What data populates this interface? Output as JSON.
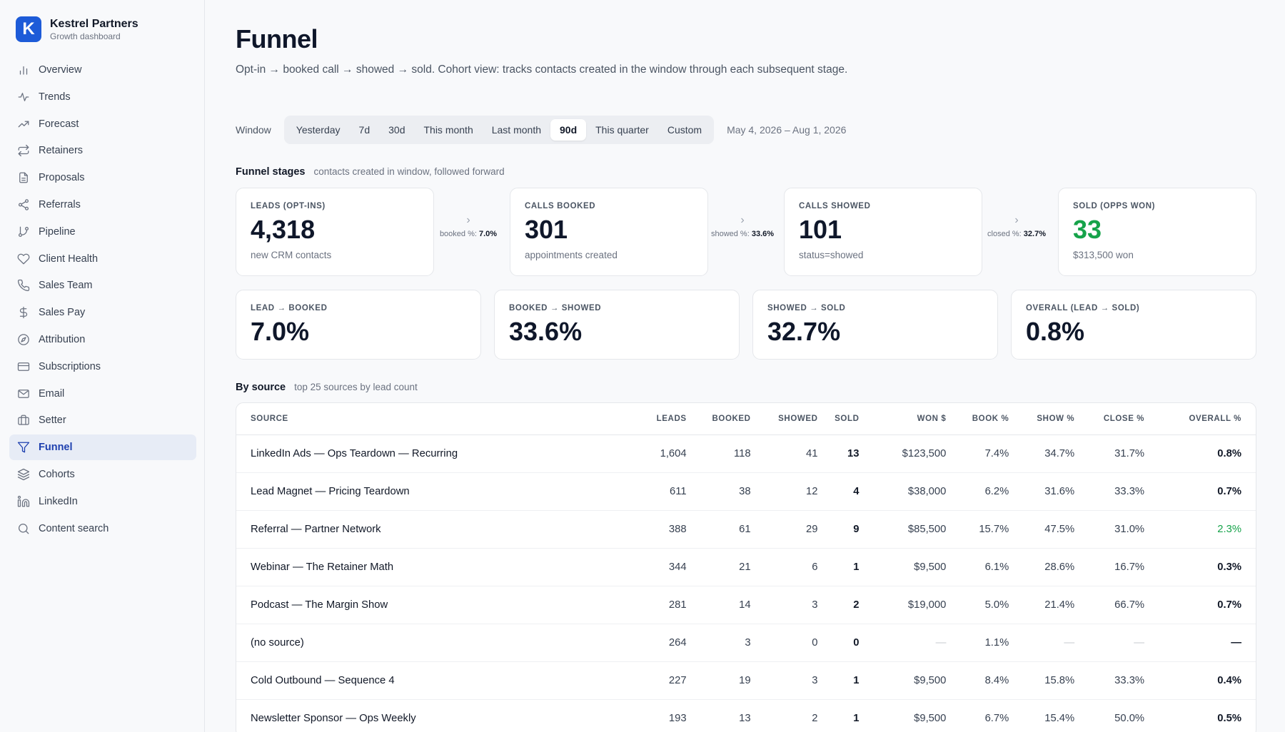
{
  "brand": {
    "logo": "K",
    "name": "Kestrel Partners",
    "subtitle": "Growth dashboard"
  },
  "nav": [
    {
      "label": "Overview",
      "icon": "bar-chart-icon",
      "active": false
    },
    {
      "label": "Trends",
      "icon": "activity-icon",
      "active": false
    },
    {
      "label": "Forecast",
      "icon": "trending-up-icon",
      "active": false
    },
    {
      "label": "Retainers",
      "icon": "repeat-icon",
      "active": false
    },
    {
      "label": "Proposals",
      "icon": "document-icon",
      "active": false
    },
    {
      "label": "Referrals",
      "icon": "share-icon",
      "active": false
    },
    {
      "label": "Pipeline",
      "icon": "git-branch-icon",
      "active": false
    },
    {
      "label": "Client Health",
      "icon": "heart-icon",
      "active": false
    },
    {
      "label": "Sales Team",
      "icon": "phone-icon",
      "active": false
    },
    {
      "label": "Sales Pay",
      "icon": "dollar-icon",
      "active": false
    },
    {
      "label": "Attribution",
      "icon": "compass-icon",
      "active": false
    },
    {
      "label": "Subscriptions",
      "icon": "credit-card-icon",
      "active": false
    },
    {
      "label": "Email",
      "icon": "mail-icon",
      "active": false
    },
    {
      "label": "Setter",
      "icon": "briefcase-icon",
      "active": false
    },
    {
      "label": "Funnel",
      "icon": "filter-icon",
      "active": true
    },
    {
      "label": "Cohorts",
      "icon": "layers-icon",
      "active": false
    },
    {
      "label": "LinkedIn",
      "icon": "linkedin-icon",
      "active": false
    },
    {
      "label": "Content search",
      "icon": "search-icon",
      "active": false
    }
  ],
  "page": {
    "title": "Funnel",
    "description": "Opt-in → booked call → showed → sold. Cohort view: tracks contacts created in the window through each subsequent stage."
  },
  "window": {
    "label": "Window",
    "options": [
      "Yesterday",
      "7d",
      "30d",
      "This month",
      "Last month",
      "90d",
      "This quarter",
      "Custom"
    ],
    "selected": "90d",
    "date_range": "May 4, 2026 – Aug 1, 2026"
  },
  "stages_section": {
    "title": "Funnel stages",
    "subtitle": "contacts created in window, followed forward"
  },
  "stages": [
    {
      "label": "LEADS (OPT-INS)",
      "value": "4,318",
      "sub": "new CRM contacts"
    },
    {
      "label": "CALLS BOOKED",
      "value": "301",
      "sub": "appointments created"
    },
    {
      "label": "CALLS SHOWED",
      "value": "101",
      "sub": "status=showed"
    },
    {
      "label": "SOLD (OPPS WON)",
      "value": "33",
      "sub": "$313,500 won"
    }
  ],
  "connectors": [
    {
      "label": "booked %:",
      "value": "7.0%"
    },
    {
      "label": "showed %:",
      "value": "33.6%"
    },
    {
      "label": "closed %:",
      "value": "32.7%"
    }
  ],
  "rates": [
    {
      "label": "LEAD → BOOKED",
      "value": "7.0%"
    },
    {
      "label": "BOOKED → SHOWED",
      "value": "33.6%"
    },
    {
      "label": "SHOWED → SOLD",
      "value": "32.7%"
    },
    {
      "label": "OVERALL (LEAD → SOLD)",
      "value": "0.8%"
    }
  ],
  "source_section": {
    "title": "By source",
    "subtitle": "top 25 sources by lead count"
  },
  "table": {
    "columns": [
      "SOURCE",
      "LEADS",
      "BOOKED",
      "SHOWED",
      "SOLD",
      "WON $",
      "BOOK %",
      "SHOW %",
      "CLOSE %",
      "OVERALL %"
    ],
    "rows": [
      [
        "LinkedIn Ads — Ops Teardown — Recurring",
        "1,604",
        "118",
        "41",
        "13",
        "$123,500",
        "7.4%",
        "34.7%",
        "31.7%",
        "0.8%"
      ],
      [
        "Lead Magnet — Pricing Teardown",
        "611",
        "38",
        "12",
        "4",
        "$38,000",
        "6.2%",
        "31.6%",
        "33.3%",
        "0.7%"
      ],
      [
        "Referral — Partner Network",
        "388",
        "61",
        "29",
        "9",
        "$85,500",
        "15.7%",
        "47.5%",
        "31.0%",
        "2.3%"
      ],
      [
        "Webinar — The Retainer Math",
        "344",
        "21",
        "6",
        "1",
        "$9,500",
        "6.1%",
        "28.6%",
        "16.7%",
        "0.3%"
      ],
      [
        "Podcast — The Margin Show",
        "281",
        "14",
        "3",
        "2",
        "$19,000",
        "5.0%",
        "21.4%",
        "66.7%",
        "0.7%"
      ],
      [
        "(no source)",
        "264",
        "3",
        "0",
        "0",
        "—",
        "1.1%",
        "—",
        "—",
        "—"
      ],
      [
        "Cold Outbound — Sequence 4",
        "227",
        "19",
        "3",
        "1",
        "$9,500",
        "8.4%",
        "15.8%",
        "33.3%",
        "0.4%"
      ],
      [
        "Newsletter Sponsor — Ops Weekly",
        "193",
        "13",
        "2",
        "1",
        "$9,500",
        "6.7%",
        "15.4%",
        "50.0%",
        "0.5%"
      ]
    ]
  },
  "colors": {
    "accent": "#1d5bd8",
    "success": "#16a34a",
    "active_nav_bg": "#e7ecf6"
  }
}
